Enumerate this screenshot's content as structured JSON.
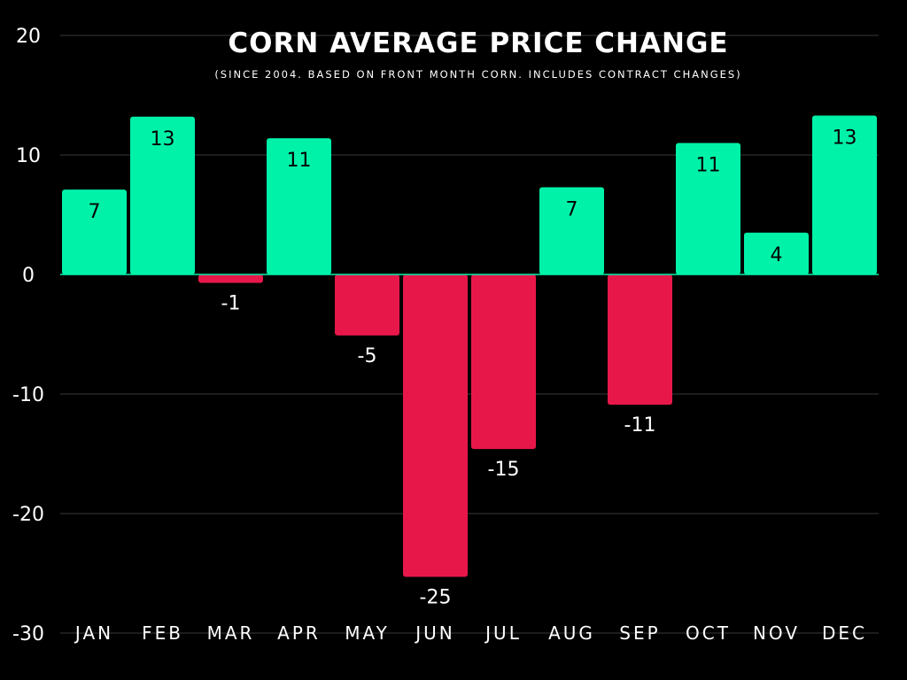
{
  "chart_data": {
    "type": "bar",
    "title": "CORN AVERAGE PRICE CHANGE",
    "subtitle": "(SINCE 2004. BASED ON FRONT MONTH CORN. INCLUDES CONTRACT CHANGES)",
    "xlabel": "",
    "ylabel": "",
    "categories": [
      "JAN",
      "FEB",
      "MAR",
      "APR",
      "MAY",
      "JUN",
      "JUL",
      "AUG",
      "SEP",
      "OCT",
      "NOV",
      "DEC"
    ],
    "values": [
      7.1,
      13.2,
      -0.7,
      11.4,
      -5.1,
      -25.3,
      -14.6,
      7.3,
      -10.9,
      11.0,
      3.5,
      13.3
    ],
    "labels": [
      "7",
      "13",
      "-1",
      "11",
      "-5",
      "-25",
      "-15",
      "7",
      "-11",
      "11",
      "4",
      "13"
    ],
    "yticks": [
      20,
      10,
      0,
      -10,
      -20,
      -30
    ],
    "ytick_labels": [
      "20",
      "10",
      "0",
      "-10",
      "-20",
      "-30"
    ],
    "ylim": [
      -30,
      20
    ],
    "grid": true,
    "legend": "none",
    "colors": {
      "background": "#000000",
      "positive": "#00F2A9",
      "negative": "#E8174A",
      "grid": "#3a3a3a",
      "text": "#FFFFFF",
      "positive_label": "#000000",
      "negative_label": "#FFFFFF"
    }
  }
}
